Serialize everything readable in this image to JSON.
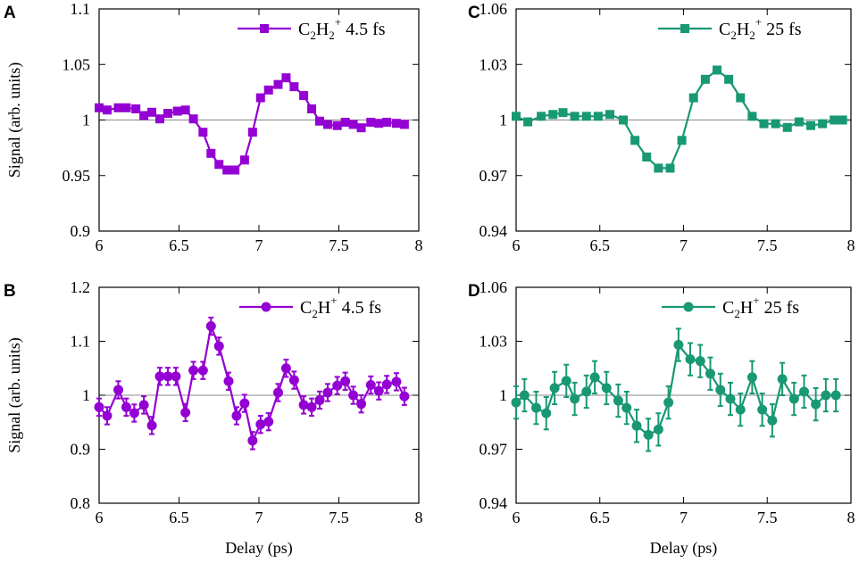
{
  "colors": {
    "purple": "#9400D3",
    "green": "#189873",
    "axis": "#000000",
    "baseline": "#888888"
  },
  "chart_data": [
    {
      "type": "line",
      "panel_label": "A",
      "marker": "square",
      "color_key": "purple",
      "legend": {
        "species_base": "C",
        "species_sub1": "2",
        "species_mid": "H",
        "species_sub2": "2",
        "species_sup": "+",
        "pulse": "4.5 fs"
      },
      "xlim": [
        6,
        8
      ],
      "ylim": [
        0.9,
        1.1
      ],
      "xticks": [
        "6",
        "6.5",
        "7",
        "7.5",
        "8"
      ],
      "yticks": [
        "0.9",
        "0.95",
        "1",
        "1.05",
        "1.1"
      ],
      "xtick_values": [
        6,
        6.5,
        7,
        7.5,
        8
      ],
      "ytick_values": [
        0.9,
        0.95,
        1.0,
        1.05,
        1.1
      ],
      "baseline": 1.0,
      "ylabel": "Signal (arb. units)",
      "xlabel": "",
      "x": [
        6.0,
        6.05,
        6.12,
        6.17,
        6.23,
        6.28,
        6.33,
        6.38,
        6.43,
        6.49,
        6.54,
        6.59,
        6.65,
        6.7,
        6.75,
        6.8,
        6.85,
        6.91,
        6.96,
        7.01,
        7.06,
        7.12,
        7.17,
        7.22,
        7.28,
        7.33,
        7.38,
        7.43,
        7.49,
        7.54,
        7.59,
        7.64,
        7.7,
        7.75,
        7.8,
        7.86,
        7.91
      ],
      "y": [
        1.011,
        1.009,
        1.011,
        1.011,
        1.01,
        1.004,
        1.007,
        1.001,
        1.006,
        1.008,
        1.009,
        1.001,
        0.989,
        0.97,
        0.96,
        0.955,
        0.955,
        0.964,
        0.989,
        1.02,
        1.027,
        1.032,
        1.038,
        1.03,
        1.022,
        1.01,
        0.999,
        0.996,
        0.995,
        0.998,
        0.996,
        0.993,
        0.998,
        0.997,
        0.998,
        0.997,
        0.996
      ]
    },
    {
      "type": "line",
      "panel_label": "B",
      "marker": "circle",
      "color_key": "purple",
      "legend": {
        "species_base": "C",
        "species_sub1": "2",
        "species_mid": "H",
        "species_sub2": "",
        "species_sup": "+",
        "pulse": "4.5 fs"
      },
      "xlim": [
        6,
        8
      ],
      "ylim": [
        0.8,
        1.2
      ],
      "xticks": [
        "6",
        "6.5",
        "7",
        "7.5",
        "8"
      ],
      "yticks": [
        "0.8",
        "0.9",
        "1",
        "1.1",
        "1.2"
      ],
      "xtick_values": [
        6,
        6.5,
        7,
        7.5,
        8
      ],
      "ytick_values": [
        0.8,
        0.9,
        1.0,
        1.1,
        1.2
      ],
      "baseline": 1.0,
      "ylabel": "Signal (arb. units)",
      "xlabel": "Delay (ps)",
      "error": 0.016,
      "x": [
        6.0,
        6.05,
        6.12,
        6.17,
        6.22,
        6.28,
        6.33,
        6.38,
        6.43,
        6.48,
        6.54,
        6.59,
        6.65,
        6.7,
        6.75,
        6.81,
        6.86,
        6.91,
        6.96,
        7.01,
        7.06,
        7.12,
        7.17,
        7.22,
        7.28,
        7.33,
        7.38,
        7.43,
        7.49,
        7.54,
        7.59,
        7.64,
        7.7,
        7.75,
        7.8,
        7.86,
        7.91
      ],
      "y": [
        0.978,
        0.962,
        1.01,
        0.978,
        0.967,
        0.982,
        0.944,
        1.035,
        1.035,
        1.035,
        0.968,
        1.046,
        1.046,
        1.128,
        1.091,
        1.026,
        0.962,
        0.985,
        0.916,
        0.946,
        0.951,
        1.005,
        1.05,
        1.028,
        0.982,
        0.978,
        0.991,
        1.005,
        1.018,
        1.026,
        1.0,
        0.984,
        1.019,
        1.008,
        1.02,
        1.025,
        0.998
      ]
    },
    {
      "type": "line",
      "panel_label": "C",
      "marker": "square",
      "color_key": "green",
      "legend": {
        "species_base": "C",
        "species_sub1": "2",
        "species_mid": "H",
        "species_sub2": "2",
        "species_sup": "+",
        "pulse": "25 fs"
      },
      "xlim": [
        6,
        8
      ],
      "ylim": [
        0.94,
        1.06
      ],
      "xticks": [
        "6",
        "6.5",
        "7",
        "7.5",
        "8"
      ],
      "yticks": [
        "0.94",
        "0.97",
        "1",
        "1.03",
        "1.06"
      ],
      "xtick_values": [
        6,
        6.5,
        7,
        7.5,
        8
      ],
      "ytick_values": [
        0.94,
        0.97,
        1.0,
        1.03,
        1.06
      ],
      "baseline": 1.0,
      "ylabel": "",
      "xlabel": "",
      "x": [
        6.0,
        6.07,
        6.15,
        6.22,
        6.28,
        6.35,
        6.42,
        6.49,
        6.56,
        6.64,
        6.71,
        6.78,
        6.85,
        6.92,
        6.99,
        7.06,
        7.13,
        7.2,
        7.27,
        7.34,
        7.41,
        7.48,
        7.55,
        7.62,
        7.69,
        7.76,
        7.83,
        7.9,
        7.95
      ],
      "y": [
        1.002,
        0.999,
        1.002,
        1.003,
        1.004,
        1.002,
        1.002,
        1.002,
        1.003,
        1.0,
        0.989,
        0.98,
        0.974,
        0.974,
        0.989,
        1.012,
        1.022,
        1.027,
        1.022,
        1.012,
        1.002,
        0.998,
        0.998,
        0.996,
        0.999,
        0.997,
        0.998,
        1.0,
        1.0
      ]
    },
    {
      "type": "line",
      "panel_label": "D",
      "marker": "circle",
      "color_key": "green",
      "legend": {
        "species_base": "C",
        "species_sub1": "2",
        "species_mid": "H",
        "species_sub2": "",
        "species_sup": "+",
        "pulse": "25 fs"
      },
      "xlim": [
        6,
        8
      ],
      "ylim": [
        0.94,
        1.06
      ],
      "xticks": [
        "6",
        "6.5",
        "7",
        "7.5",
        "8"
      ],
      "yticks": [
        "0.94",
        "0.97",
        "1",
        "1.03",
        "1.06"
      ],
      "xtick_values": [
        6,
        6.5,
        7,
        7.5,
        8
      ],
      "ytick_values": [
        0.94,
        0.97,
        1.0,
        1.03,
        1.06
      ],
      "baseline": 1.0,
      "ylabel": "",
      "xlabel": "Delay (ps)",
      "error": 0.009,
      "x": [
        6.0,
        6.05,
        6.12,
        6.18,
        6.23,
        6.3,
        6.35,
        6.42,
        6.47,
        6.54,
        6.61,
        6.66,
        6.72,
        6.79,
        6.85,
        6.91,
        6.97,
        7.04,
        7.1,
        7.16,
        7.22,
        7.28,
        7.34,
        7.41,
        7.47,
        7.53,
        7.59,
        7.66,
        7.72,
        7.79,
        7.85,
        7.91
      ],
      "y": [
        0.996,
        1.0,
        0.993,
        0.99,
        1.004,
        1.008,
        0.998,
        1.002,
        1.01,
        1.004,
        0.997,
        0.993,
        0.983,
        0.978,
        0.981,
        0.996,
        1.028,
        1.02,
        1.019,
        1.012,
        1.003,
        0.998,
        0.992,
        1.01,
        0.992,
        0.986,
        1.009,
        0.998,
        1.002,
        0.995,
        1.0,
        1.0
      ]
    }
  ]
}
